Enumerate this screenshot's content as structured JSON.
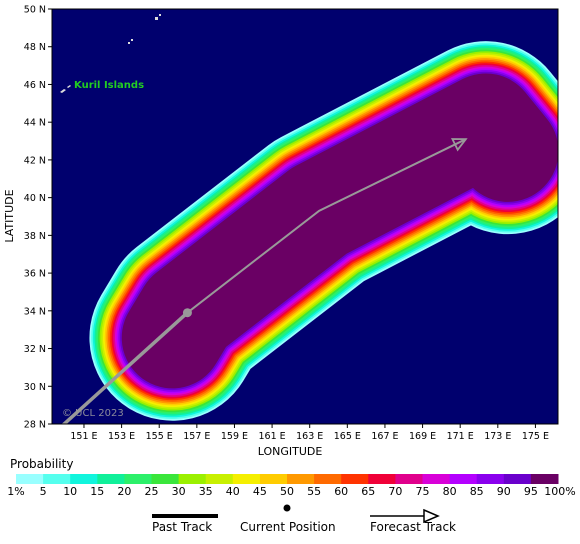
{
  "map": {
    "xlabel": "LONGITUDE",
    "ylabel": "LATITUDE",
    "lon_range": [
      149.3,
      176.2
    ],
    "lat_range": [
      28,
      50
    ],
    "lon_ticks": [
      "151 E",
      "153 E",
      "155 E",
      "157 E",
      "159 E",
      "161 E",
      "163 E",
      "165 E",
      "167 E",
      "169 E",
      "171 E",
      "173 E",
      "175 E"
    ],
    "lat_ticks": [
      "28 N",
      "30 N",
      "32 N",
      "34 N",
      "36 N",
      "38 N",
      "40 N",
      "42 N",
      "44 N",
      "46 N",
      "48 N",
      "50 N"
    ],
    "place_label": "Kuril Islands",
    "copyright": "© UCL 2023",
    "ocean_color": "#00006e",
    "current_position": {
      "lon": 156.5,
      "lat": 33.9
    },
    "past_track": [
      [
        149.5,
        27.6
      ],
      [
        156.5,
        33.9
      ]
    ],
    "forecast_track": [
      [
        156.5,
        33.9
      ],
      [
        163.5,
        39.3
      ],
      [
        171.3,
        43.1
      ]
    ]
  },
  "scale": {
    "title": "Probability",
    "labels": [
      "1%",
      "5",
      "10",
      "15",
      "20",
      "25",
      "30",
      "35",
      "40",
      "45",
      "50",
      "55",
      "60",
      "65",
      "70",
      "75",
      "80",
      "85",
      "90",
      "95",
      "100%"
    ],
    "colors": [
      "#99ffff",
      "#55ffee",
      "#11f5dd",
      "#10f09a",
      "#2cf06a",
      "#3ae63b",
      "#9bf000",
      "#c8f000",
      "#f5ef00",
      "#ffcc00",
      "#ff9900",
      "#ff6a00",
      "#ff3300",
      "#f00038",
      "#e0008c",
      "#d800d8",
      "#b400ff",
      "#8a00ee",
      "#6a00cc",
      "#6a0064"
    ]
  },
  "legend": {
    "past_track": "Past Track",
    "current_position": "Current Position",
    "forecast_track": "Forecast Track"
  }
}
